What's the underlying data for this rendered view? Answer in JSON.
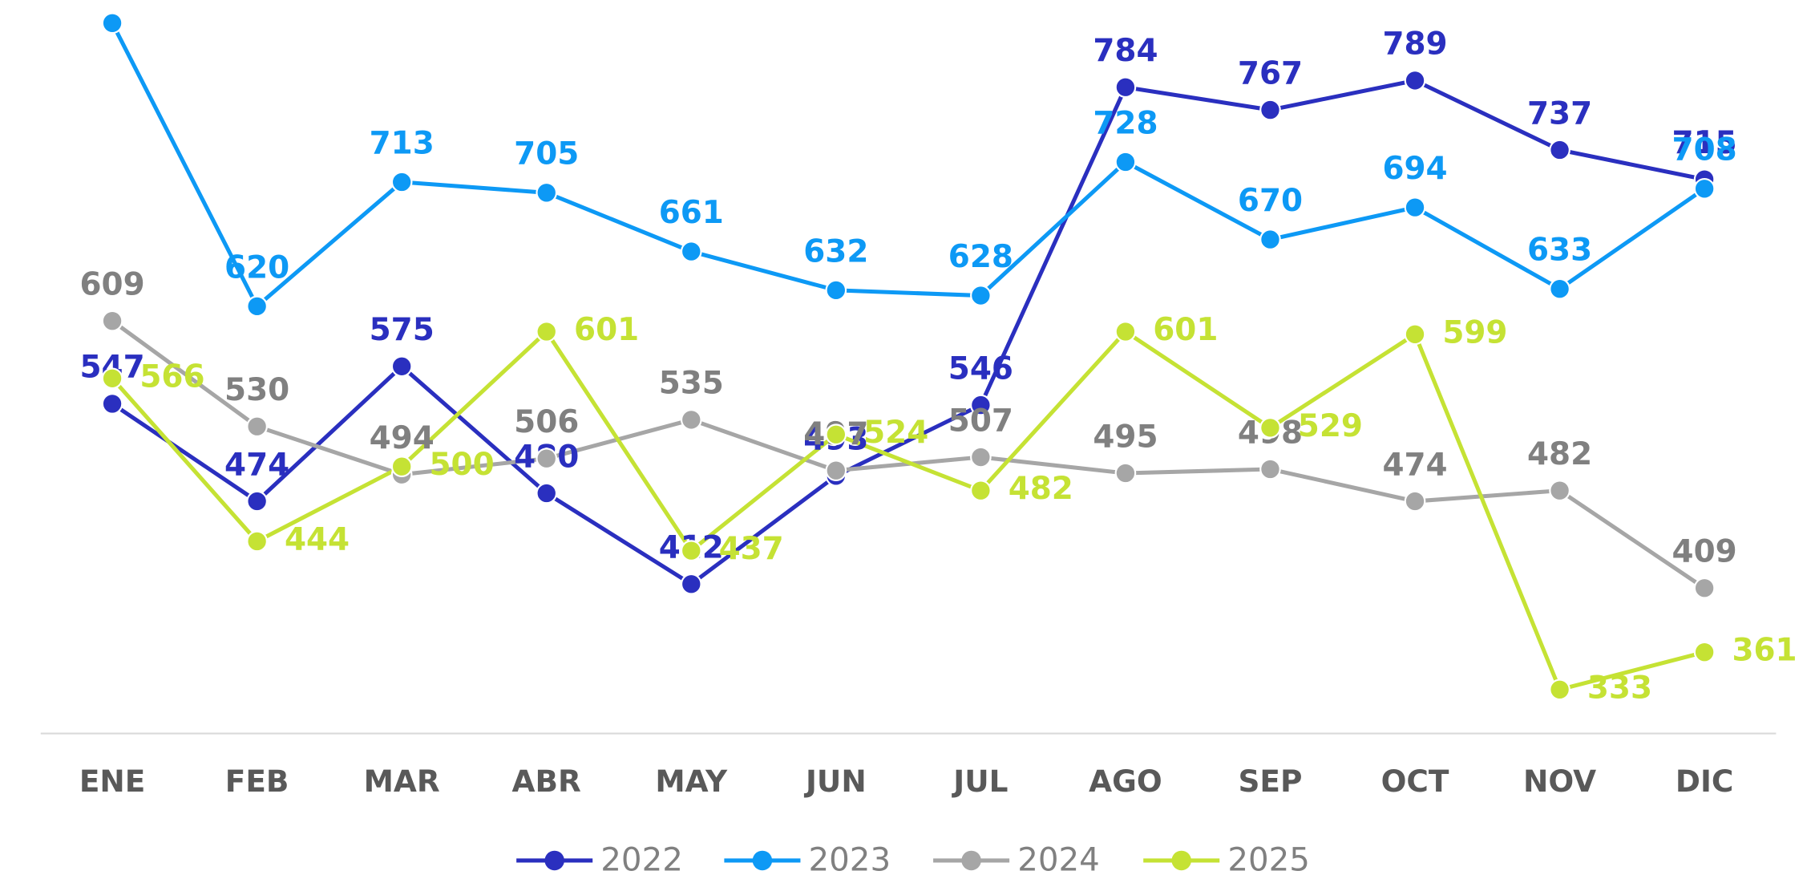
{
  "chart_data": {
    "type": "line",
    "categories": [
      "ENE",
      "FEB",
      "MAR",
      "ABR",
      "MAY",
      "JUN",
      "JUL",
      "AGO",
      "SEP",
      "OCT",
      "NOV",
      "DIC"
    ],
    "series": [
      {
        "name": "2022",
        "color": "#2a2fbf",
        "values": [
          547,
          474,
          575,
          480,
          412,
          493,
          546,
          784,
          767,
          789,
          737,
          715
        ]
      },
      {
        "name": "2023",
        "color": "#0d99f5",
        "values": [
          832,
          620,
          713,
          705,
          661,
          632,
          628,
          728,
          670,
          694,
          633,
          708
        ]
      },
      {
        "name": "2024",
        "color": "#a6a6a6",
        "values": [
          609,
          530,
          494,
          506,
          535,
          497,
          507,
          495,
          498,
          474,
          482,
          409
        ]
      },
      {
        "name": "2025",
        "color": "#c5e234",
        "values": [
          566,
          444,
          500,
          601,
          437,
          524,
          482,
          601,
          529,
          599,
          333,
          361
        ]
      }
    ],
    "legend": "bottom"
  }
}
